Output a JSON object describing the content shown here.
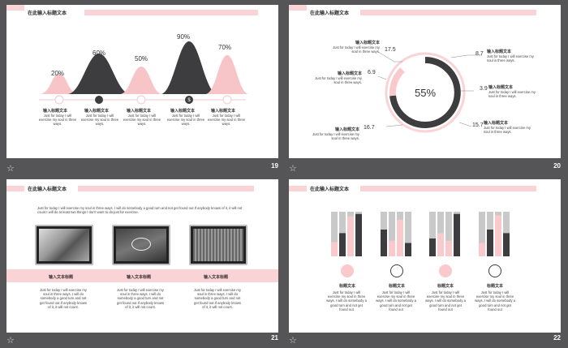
{
  "slides": {
    "s19": {
      "title": "在此输入标题文本",
      "number": "19",
      "peaks": [
        {
          "pct": "20%",
          "value": 20,
          "color": "pink"
        },
        {
          "pct": "60%",
          "value": 60,
          "color": "dark"
        },
        {
          "pct": "50%",
          "value": 50,
          "color": "pink"
        },
        {
          "pct": "90%",
          "value": 90,
          "color": "dark"
        },
        {
          "pct": "70%",
          "value": 70,
          "color": "pink"
        }
      ],
      "items": [
        {
          "head": "输入标题文本",
          "body": "Just for today I will exercise my soul in three ways."
        },
        {
          "head": "输入标题文本",
          "body": "Just for today I will exercise my soul in three ways."
        },
        {
          "head": "输入标题文本",
          "body": "Just for today I will exercise my soul in three ways."
        },
        {
          "head": "输入标题文本",
          "body": "Just for today I will exercise my soul in three ways."
        },
        {
          "head": "输入标题文本",
          "body": "Just for today I will exercise my soul in three ways."
        }
      ]
    },
    "s20": {
      "title": "在此输入标题文本",
      "number": "20",
      "center": "55%",
      "values": {
        "tl": "17.5",
        "ml": "6.9",
        "bl": "16.7",
        "tr": "8.7",
        "mr": "3.9",
        "br": "15.7"
      },
      "labels": [
        {
          "head": "输入标题文本",
          "body": "Just for today I will exercise my soul in three ways."
        },
        {
          "head": "输入标题文本",
          "body": "Just for today I will exercise my soul in three ways."
        },
        {
          "head": "输入标题文本",
          "body": "Just for today I will exercise my soul in three ways."
        },
        {
          "head": "输入标题文本",
          "body": "Just for today I will exercise my soul in three ways."
        },
        {
          "head": "输入标题文本",
          "body": "Just for today I will exercise my soul in three ways."
        },
        {
          "head": "输入标题文本",
          "body": "Just for today I will exercise my soul in three ways."
        }
      ]
    },
    "s21": {
      "title": "在此输入标题文本",
      "number": "21",
      "intro": "Just for today I will exercise my soul in three ways. I will do somebody a good turn and not get found out.If anybody knows of it, it will not count.I will do at least two things I don't want to do-just for exercise.",
      "cols": [
        {
          "head": "输入文本标题",
          "body": "Just for today I will exercise my soul in three ways. I will do somebody a good turn and not get found out.If anybody knows of it, it will not count."
        },
        {
          "head": "输入文本标题",
          "body": "Just for today I will exercise my soul in three ways. I will do somebody a good turn and not get found out.If anybody knows of it, it will not count."
        },
        {
          "head": "输入文本标题",
          "body": "Just for today I will exercise my soul in three ways. I will do somebody a good turn and not get found out.If anybody knows of it, it will not count."
        }
      ]
    },
    "s22": {
      "title": "在此输入标题文本",
      "number": "22",
      "groups": [
        {
          "head": "标题文本",
          "body": "Just for today I will exercise my soul in three ways. I will do somebody a good turn and not get found out",
          "bars": [
            {
              "fill": 0.32,
              "color": "#f9c9cc"
            },
            {
              "fill": 0.52,
              "color": "#3d3d3f"
            },
            {
              "fill": 0.9,
              "color": "#f9c9cc"
            },
            {
              "fill": 0.95,
              "color": "#3d3d3f"
            }
          ]
        },
        {
          "head": "标题文本",
          "body": "Just for today I will exercise my soul in three ways. I will do somebody a good turn and not get found out",
          "bars": [
            {
              "fill": 0.6,
              "color": "#3d3d3f"
            },
            {
              "fill": 0.35,
              "color": "#f9c9cc"
            },
            {
              "fill": 0.82,
              "color": "#f9c9cc"
            },
            {
              "fill": 0.3,
              "color": "#3d3d3f"
            }
          ]
        },
        {
          "head": "标题文本",
          "body": "Just for today I will exercise my soul in three ways. I will do somebody a good turn and not get found out",
          "bars": [
            {
              "fill": 0.4,
              "color": "#3d3d3f"
            },
            {
              "fill": 0.52,
              "color": "#f9c9cc"
            },
            {
              "fill": 0.35,
              "color": "#f9c9cc"
            },
            {
              "fill": 0.95,
              "color": "#3d3d3f"
            }
          ]
        },
        {
          "head": "标题文本",
          "body": "Just for today I will exercise my soul in three ways. I will do somebody a good turn and not get found out",
          "bars": [
            {
              "fill": 0.3,
              "color": "#f9c9cc"
            },
            {
              "fill": 0.6,
              "color": "#3d3d3f"
            },
            {
              "fill": 0.92,
              "color": "#f9c9cc"
            },
            {
              "fill": 0.52,
              "color": "#3d3d3f"
            }
          ]
        }
      ]
    }
  },
  "icons": [
    "star-icon"
  ]
}
